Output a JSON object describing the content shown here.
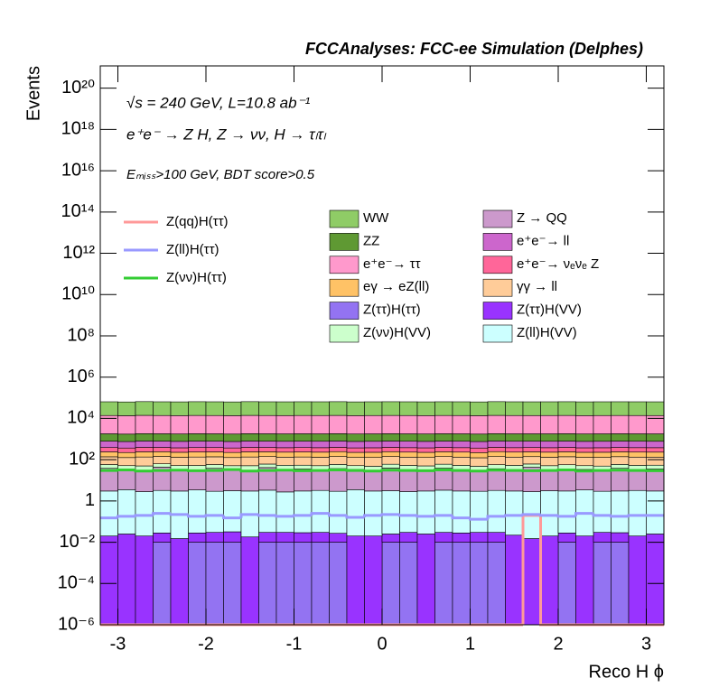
{
  "chart_data": {
    "type": "stacked_histogram",
    "title": "FCCAnalyses: FCC-ee Simulation (Delphes)",
    "annotations": [
      "√s = 240 GeV, L=10.8 ab⁻¹",
      "e⁺e⁻ → Z H, Z → νν, H → τₗτₗ",
      "Eₘᵢₛₛ>100 GeV, BDT score>0.5"
    ],
    "x_label": "Reco H ϕ",
    "y_label": "Events",
    "log_y": true,
    "xlim": [
      -3.2,
      3.2
    ],
    "ylim": [
      1e-06,
      1.2e+21
    ],
    "xticks": [
      -3,
      -2,
      -1,
      0,
      1,
      2,
      3
    ],
    "yticks": [
      {
        "value": 1e-06,
        "label": "10⁻⁶"
      },
      {
        "value": 0.0001,
        "label": "10⁻⁴"
      },
      {
        "value": 0.01,
        "label": "10⁻²"
      },
      1,
      {
        "value": 100,
        "label": "10²"
      },
      {
        "value": 10000.0,
        "label": "10⁴"
      },
      {
        "value": 1000000.0,
        "label": "10⁶"
      },
      {
        "value": 100000000.0,
        "label": "10⁸"
      },
      {
        "value": 10000000000.0,
        "label": "10¹⁰"
      },
      {
        "value": 1000000000000.0,
        "label": "10¹²"
      },
      {
        "value": 100000000000000.0,
        "label": "10¹⁴"
      },
      {
        "value": 1e+16,
        "label": "10¹⁶"
      },
      {
        "value": 1e+18,
        "label": "10¹⁸"
      },
      {
        "value": 1e+20,
        "label": "10²⁰"
      }
    ],
    "bins": [
      -3.2,
      -3.0,
      -2.8,
      -2.6,
      -2.4,
      -2.2,
      -2.0,
      -1.8,
      -1.6,
      -1.4,
      -1.2,
      -1.0,
      -0.8,
      -0.6,
      -0.4,
      -0.2,
      0,
      0.2,
      0.4,
      0.6,
      0.8,
      1.0,
      1.2,
      1.4,
      1.6,
      1.8,
      2.0,
      2.2,
      2.4,
      2.6,
      2.8,
      3.0,
      3.2
    ],
    "series": [
      {
        "name": "Z(ττ)H(ττ)",
        "color": "#9373f2",
        "values": [
          0,
          0,
          0,
          0.01,
          0,
          0.01,
          0.01,
          0.01,
          0,
          0.01,
          0.01,
          0.01,
          0.01,
          0.01,
          0,
          0,
          0.01,
          0.01,
          0,
          0.01,
          0.01,
          0.01,
          0.01,
          0,
          0,
          0,
          0.01,
          0,
          0.01,
          0.01,
          0,
          0
        ]
      },
      {
        "name": "Z(ττ)H(VV)",
        "color": "#9933ff",
        "values": [
          0.02,
          0.025,
          0.02,
          0.018,
          0.015,
          0.018,
          0.02,
          0.022,
          0.018,
          0.02,
          0.02,
          0.019,
          0.02,
          0.017,
          0.02,
          0.02,
          0.015,
          0.02,
          0.025,
          0.02,
          0.018,
          0.02,
          0.02,
          0.022,
          0.015,
          0.02,
          0.018,
          0.02,
          0.02,
          0.019,
          0.02,
          0.025
        ]
      },
      {
        "name": "Z(ll)H(VV)",
        "color": "#ccffff",
        "values": [
          3,
          3.5,
          2.8,
          3.2,
          3,
          3.4,
          2.9,
          3.1,
          3,
          3.3,
          2.7,
          3,
          3.2,
          2.9,
          3.5,
          3,
          3.1,
          2.8,
          3,
          3.3,
          3,
          2.9,
          3.2,
          3,
          2.8,
          3.1,
          3,
          3.4,
          2.9,
          3,
          3.2,
          3
        ]
      },
      {
        "name": "Z → QQ",
        "color": "#cc99cc",
        "values": [
          35,
          30,
          25,
          40,
          30,
          28,
          35,
          30,
          26,
          38,
          30,
          32,
          28,
          34,
          30,
          25,
          36,
          30,
          28,
          35,
          30,
          27,
          33,
          30,
          40,
          28,
          32,
          30,
          26,
          35,
          30,
          32
        ]
      },
      {
        "name": "Z(νν)H(VV)",
        "color": "#ccffcc",
        "values": [
          20,
          18,
          22,
          20,
          19,
          21,
          20,
          18,
          22,
          20,
          21,
          19,
          20,
          22,
          18,
          20,
          21,
          20,
          19,
          22,
          20,
          18,
          21,
          20,
          19,
          20,
          22,
          18,
          20,
          21,
          20,
          19
        ]
      },
      {
        "name": "γγ → ll",
        "color": "#ffcc99",
        "values": [
          80,
          75,
          85,
          80,
          78,
          82,
          80,
          76,
          84,
          80,
          79,
          81,
          80,
          83,
          77,
          80,
          82,
          80,
          78,
          81,
          80,
          76,
          84,
          80,
          79,
          80,
          82,
          78,
          80,
          81,
          80,
          79
        ]
      },
      {
        "name": "eγ → eZ(ll)",
        "color": "#ffc266",
        "values": [
          100,
          95,
          105,
          100,
          98,
          102,
          100,
          96,
          104,
          100,
          99,
          101,
          100,
          103,
          97,
          100,
          102,
          100,
          98,
          101,
          100,
          96,
          104,
          100,
          99,
          100,
          102,
          98,
          100,
          101,
          100,
          99
        ]
      },
      {
        "name": "e⁺e⁻→ νₑνₑ Z",
        "color": "#ff6699",
        "values": [
          150,
          145,
          155,
          150,
          148,
          152,
          150,
          146,
          154,
          150,
          149,
          151,
          150,
          153,
          147,
          150,
          152,
          150,
          148,
          151,
          150,
          146,
          154,
          150,
          149,
          150,
          152,
          148,
          150,
          151,
          150,
          149
        ]
      },
      {
        "name": "e⁺e⁻→ ll",
        "color": "#cc66cc",
        "values": [
          400,
          390,
          410,
          400,
          395,
          405,
          400,
          392,
          408,
          400,
          398,
          402,
          400,
          406,
          394,
          400,
          404,
          400,
          396,
          402,
          400,
          392,
          408,
          400,
          398,
          400,
          404,
          396,
          400,
          402,
          400,
          398
        ]
      },
      {
        "name": "ZZ",
        "color": "#5f9933",
        "values": [
          1000,
          980,
          1020,
          1000,
          990,
          1010,
          1000,
          985,
          1015,
          1000,
          995,
          1005,
          1000,
          1012,
          988,
          1000,
          1008,
          1000,
          992,
          1004,
          1000,
          984,
          1016,
          1000,
          996,
          1000,
          1008,
          992,
          1000,
          1004,
          1000,
          996
        ]
      },
      {
        "name": "e⁺e⁻→ ττ",
        "color": "#ff99cc",
        "values": [
          12000,
          11800,
          12200,
          12000,
          11900,
          12100,
          12000,
          11850,
          12150,
          12000,
          11950,
          12050,
          12000,
          12120,
          11880,
          12000,
          12080,
          12000,
          11920,
          12040,
          12000,
          11840,
          12160,
          12000,
          11960,
          12000,
          12080,
          11920,
          12000,
          12040,
          12000,
          11960
        ]
      },
      {
        "name": "WW",
        "color": "#8fcc66",
        "values": [
          50000,
          49000,
          51000,
          50000,
          49500,
          50500,
          50000,
          49200,
          50800,
          50000,
          49800,
          50200,
          50000,
          50600,
          49400,
          50000,
          50400,
          50000,
          49600,
          50200,
          50000,
          49200,
          50800,
          50000,
          49800,
          50000,
          50400,
          49600,
          50000,
          50200,
          50000,
          49800
        ]
      }
    ],
    "line_series": [
      {
        "name": "Z(qq)H(ττ)",
        "color": "#ff9999",
        "values": [
          0,
          0,
          0,
          0,
          0,
          0,
          0,
          0,
          0,
          0,
          0,
          0,
          0,
          0,
          0,
          0,
          0,
          0,
          0,
          0,
          0,
          0,
          0,
          0,
          0.2,
          0,
          0,
          0,
          0,
          0,
          0,
          0
        ]
      },
      {
        "name": "Z(ll)H(ττ)",
        "color": "#9999ff",
        "values": [
          0.15,
          0.18,
          0.2,
          0.25,
          0.22,
          0.18,
          0.2,
          0.15,
          0.22,
          0.2,
          0.18,
          0.2,
          0.25,
          0.2,
          0.16,
          0.2,
          0.22,
          0.2,
          0.18,
          0.2,
          0.15,
          0.13,
          0.18,
          0.2,
          0.22,
          0.2,
          0.18,
          0.25,
          0.2,
          0.18,
          0.2,
          0.2
        ]
      },
      {
        "name": "Z(νν)H(ττ)",
        "color": "#33cc33",
        "values": [
          30,
          32,
          28,
          30,
          31,
          29,
          30,
          33,
          28,
          30,
          31,
          29,
          30,
          32,
          30,
          28,
          31,
          30,
          29,
          32,
          30,
          28,
          31,
          30,
          29,
          30,
          32,
          28,
          30,
          31,
          30,
          29
        ]
      }
    ]
  }
}
